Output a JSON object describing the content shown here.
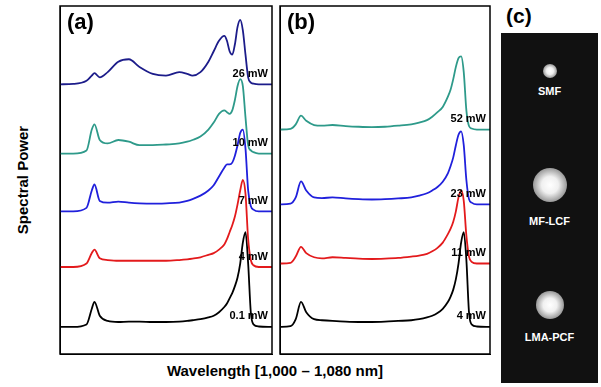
{
  "figure": {
    "x_label": "Wavelength [1,000 – 1,080 nm]",
    "y_label": "Spectral Power"
  },
  "chart_data": [
    {
      "type": "line",
      "title": "(a)",
      "xlim": [
        1000,
        1080
      ],
      "ylim": [
        0,
        10
      ],
      "grid": false,
      "tick_labels": false,
      "x": [
        1000,
        1005,
        1010,
        1012,
        1013,
        1015,
        1018,
        1022,
        1026,
        1030,
        1035,
        1040,
        1045,
        1048,
        1050,
        1053,
        1056,
        1058,
        1060,
        1062,
        1063,
        1064,
        1065,
        1066,
        1067,
        1068,
        1069,
        1070,
        1071,
        1072,
        1073,
        1075,
        1080
      ],
      "series": [
        {
          "name": "26 mW",
          "color": "#1c1c8a",
          "values": [
            7.75,
            7.76,
            7.85,
            8.0,
            8.07,
            7.95,
            8.1,
            8.4,
            8.47,
            8.25,
            8.05,
            8.0,
            8.1,
            8.05,
            8.0,
            8.1,
            8.4,
            8.7,
            9.0,
            9.14,
            9.0,
            8.7,
            8.6,
            8.9,
            9.4,
            9.6,
            9.3,
            8.6,
            7.95,
            7.8,
            7.77,
            7.75,
            7.75
          ]
        },
        {
          "name": "10 mW",
          "color": "#2e9a8a",
          "values": [
            5.76,
            5.76,
            5.85,
            6.45,
            6.6,
            6.15,
            6.05,
            6.15,
            6.1,
            6.0,
            6.0,
            6.02,
            6.05,
            6.1,
            6.15,
            6.25,
            6.45,
            6.65,
            6.9,
            7.0,
            6.95,
            6.9,
            7.0,
            7.3,
            7.7,
            7.9,
            7.7,
            6.8,
            6.0,
            5.85,
            5.8,
            5.76,
            5.76
          ]
        },
        {
          "name": "7 mW",
          "color": "#2020dc",
          "values": [
            4.1,
            4.1,
            4.2,
            4.7,
            4.87,
            4.4,
            4.35,
            4.38,
            4.35,
            4.33,
            4.32,
            4.33,
            4.35,
            4.4,
            4.45,
            4.55,
            4.7,
            4.85,
            5.1,
            5.35,
            5.45,
            5.45,
            5.5,
            5.7,
            6.0,
            6.35,
            6.45,
            5.9,
            4.7,
            4.25,
            4.15,
            4.1,
            4.1
          ]
        },
        {
          "name": "4 mW",
          "color": "#e31a1c",
          "values": [
            2.5,
            2.5,
            2.6,
            2.9,
            3.0,
            2.75,
            2.7,
            2.68,
            2.68,
            2.68,
            2.68,
            2.68,
            2.7,
            2.72,
            2.74,
            2.78,
            2.85,
            2.9,
            3.0,
            3.15,
            3.3,
            3.5,
            3.7,
            3.95,
            4.3,
            4.7,
            5.0,
            4.6,
            3.3,
            2.7,
            2.55,
            2.5,
            2.5
          ]
        },
        {
          "name": "0.1 mW",
          "color": "#000000",
          "values": [
            0.78,
            0.78,
            0.85,
            1.3,
            1.5,
            1.1,
            0.95,
            0.92,
            0.93,
            0.93,
            0.92,
            0.92,
            0.93,
            0.95,
            0.97,
            1.0,
            1.05,
            1.1,
            1.2,
            1.35,
            1.45,
            1.6,
            1.75,
            1.95,
            2.2,
            2.6,
            3.2,
            3.5,
            2.6,
            1.2,
            0.85,
            0.79,
            0.78
          ]
        }
      ]
    },
    {
      "type": "line",
      "title": "(b)",
      "xlim": [
        1000,
        1080
      ],
      "ylim": [
        0,
        10
      ],
      "grid": false,
      "tick_labels": false,
      "x": [
        1000,
        1004,
        1006,
        1008,
        1010,
        1013,
        1016,
        1020,
        1025,
        1030,
        1035,
        1040,
        1045,
        1050,
        1053,
        1056,
        1058,
        1060,
        1062,
        1064,
        1065,
        1066,
        1067,
        1068,
        1069,
        1070,
        1071,
        1072,
        1073,
        1075,
        1080
      ],
      "series": [
        {
          "name": "52 mW",
          "color": "#2e9a8a",
          "values": [
            6.45,
            6.47,
            6.6,
            6.85,
            6.7,
            6.58,
            6.56,
            6.58,
            6.55,
            6.53,
            6.52,
            6.53,
            6.56,
            6.6,
            6.65,
            6.72,
            6.82,
            6.95,
            7.1,
            7.4,
            7.6,
            7.9,
            8.25,
            8.5,
            8.55,
            8.1,
            7.0,
            6.55,
            6.48,
            6.45,
            6.45
          ]
        },
        {
          "name": "23 mW",
          "color": "#2020dc",
          "values": [
            4.3,
            4.32,
            4.5,
            4.96,
            4.7,
            4.5,
            4.48,
            4.5,
            4.47,
            4.45,
            4.44,
            4.45,
            4.47,
            4.5,
            4.55,
            4.62,
            4.7,
            4.8,
            4.95,
            5.2,
            5.4,
            5.65,
            6.0,
            6.3,
            6.4,
            6.0,
            5.0,
            4.45,
            4.35,
            4.3,
            4.3
          ]
        },
        {
          "name": "11 mW",
          "color": "#e31a1c",
          "values": [
            2.6,
            2.62,
            2.8,
            3.08,
            2.9,
            2.78,
            2.75,
            2.78,
            2.76,
            2.74,
            2.73,
            2.74,
            2.76,
            2.8,
            2.83,
            2.88,
            2.95,
            3.05,
            3.2,
            3.45,
            3.6,
            3.8,
            4.1,
            4.5,
            4.7,
            4.4,
            3.4,
            2.8,
            2.65,
            2.6,
            2.6
          ]
        },
        {
          "name": "4 mW",
          "color": "#000000",
          "values": [
            0.78,
            0.8,
            1.0,
            1.5,
            1.2,
            1.0,
            0.97,
            0.95,
            0.93,
            0.92,
            0.92,
            0.93,
            0.95,
            0.97,
            1.0,
            1.05,
            1.1,
            1.18,
            1.3,
            1.5,
            1.65,
            1.85,
            2.15,
            2.6,
            3.2,
            3.5,
            2.7,
            1.2,
            0.85,
            0.79,
            0.78
          ]
        }
      ]
    }
  ],
  "image": {
    "title": "(c)",
    "labels": [
      "SMF",
      "MF-LCF",
      "LMA-PCF"
    ]
  }
}
